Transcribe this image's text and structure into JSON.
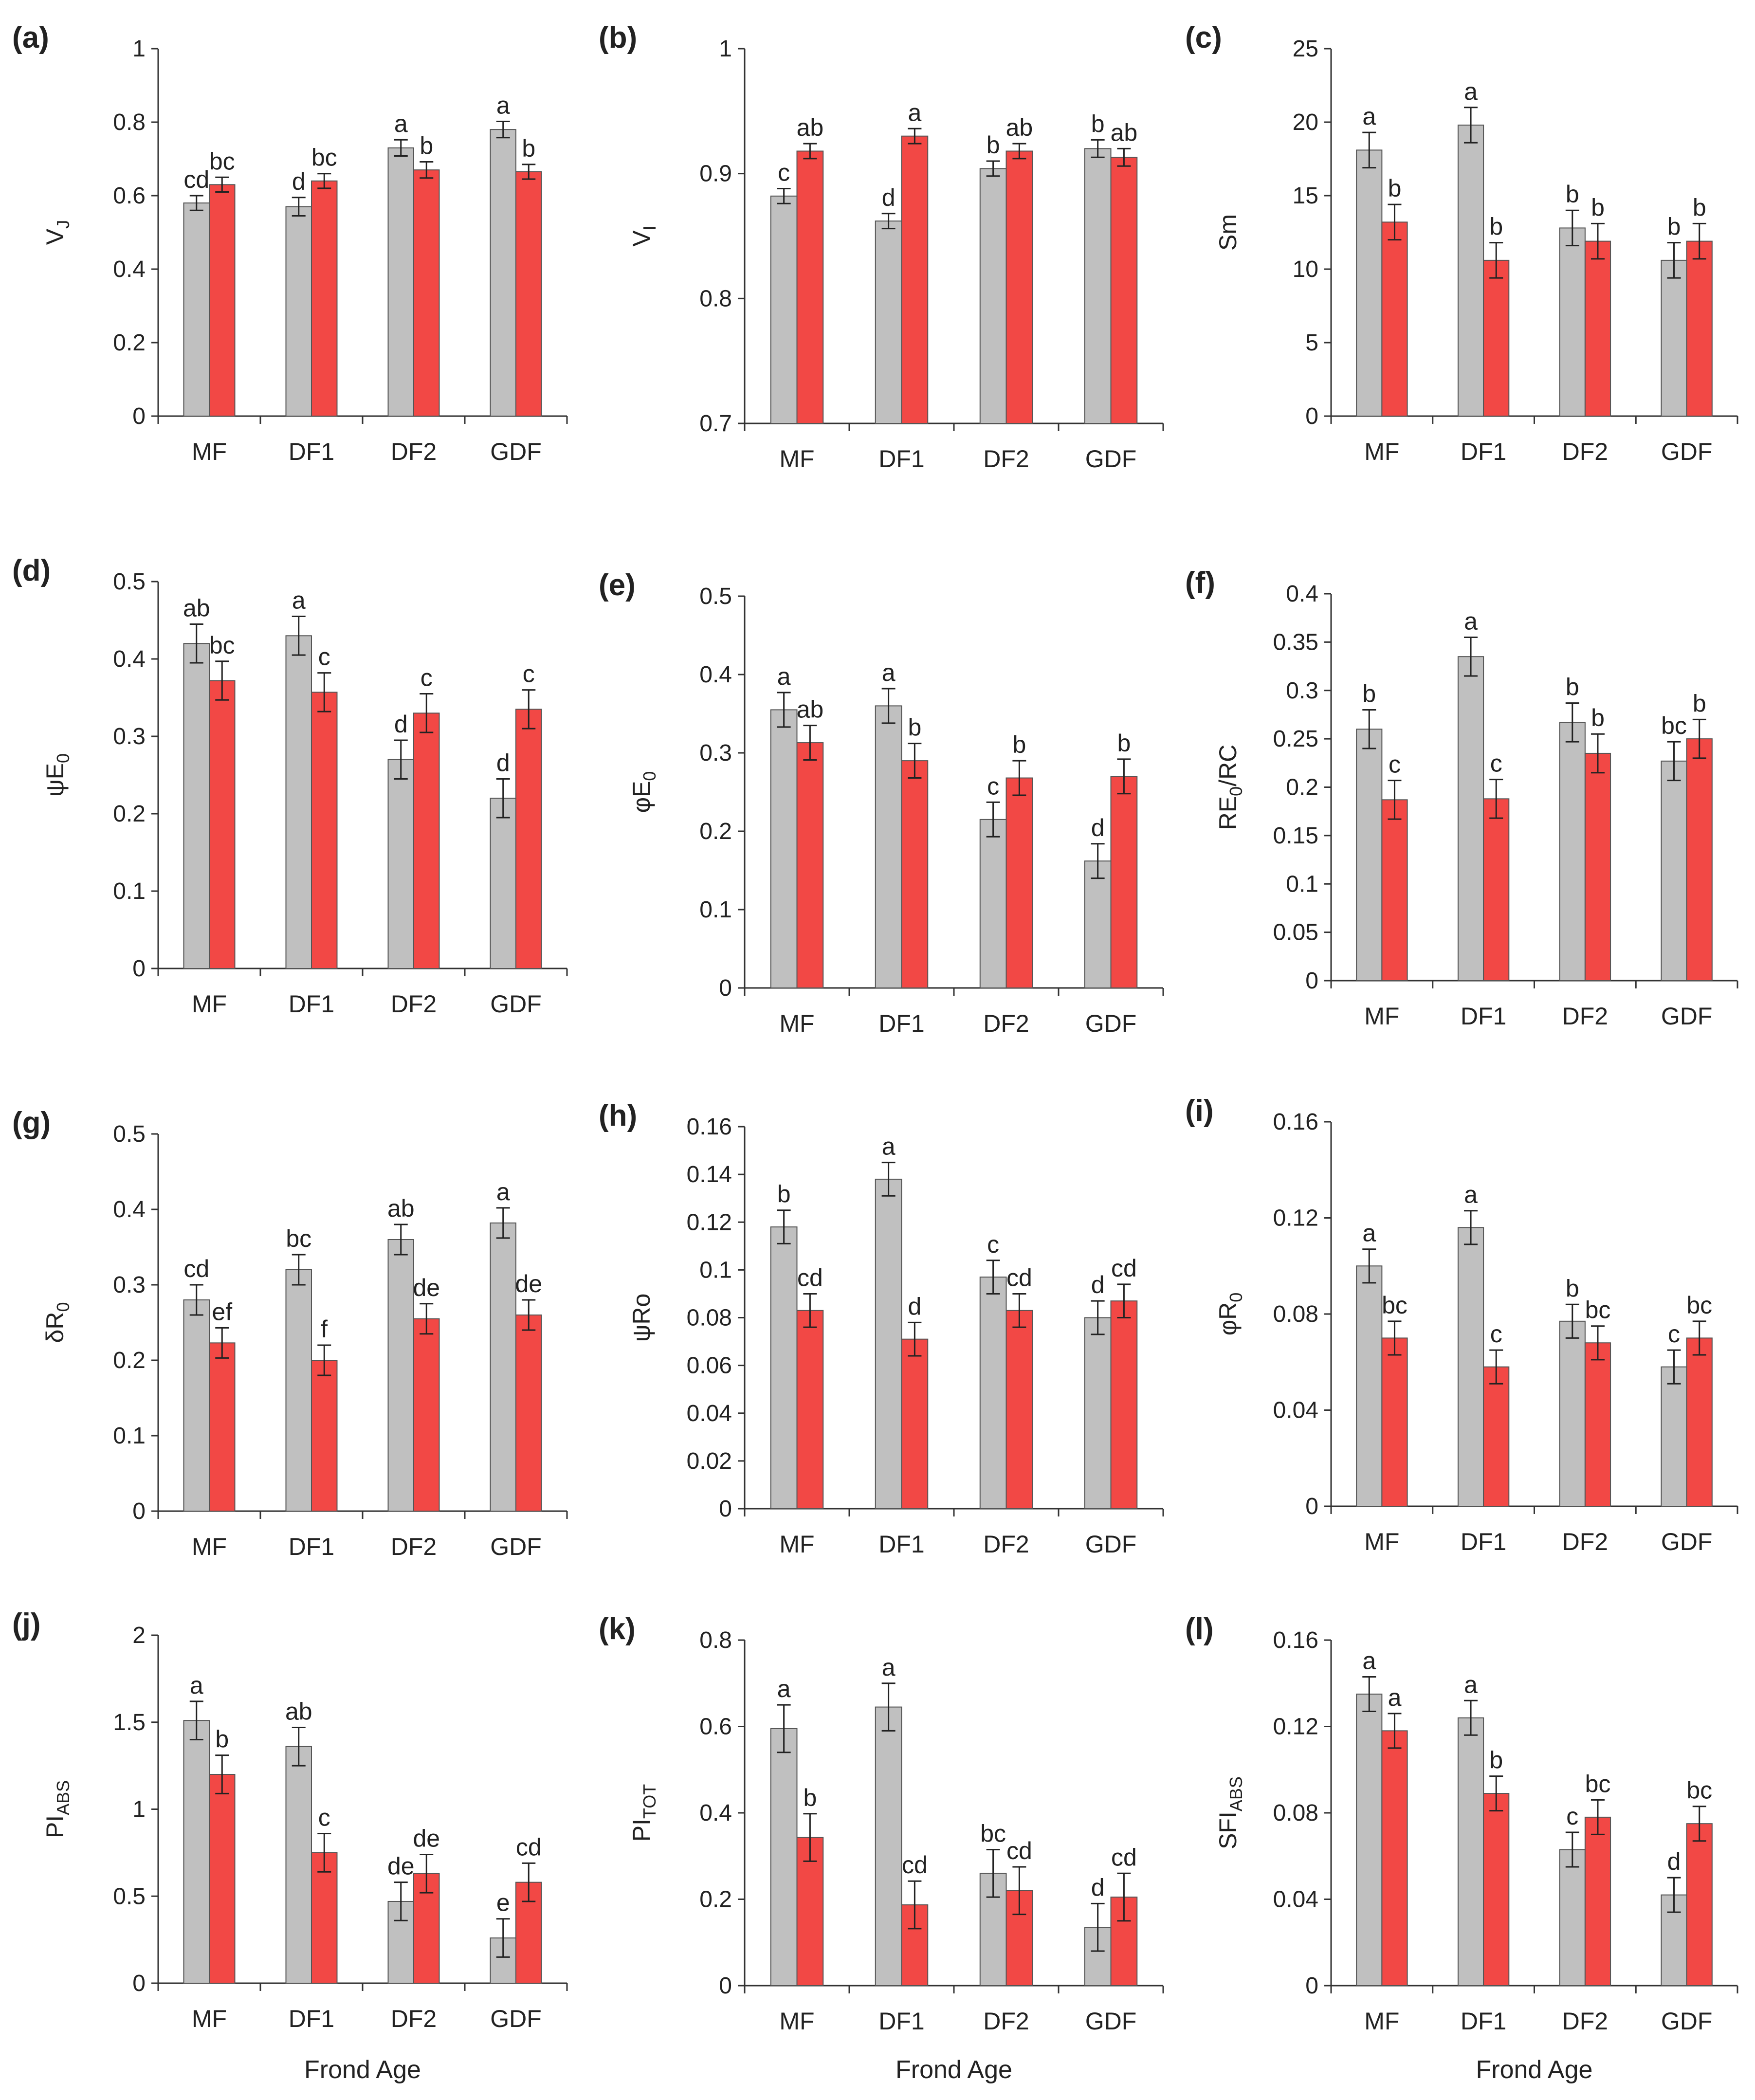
{
  "figure": {
    "x_axis_title": "Frond Age",
    "series_colors": {
      "grey": "#c0c0c0",
      "red": "#f24845"
    }
  },
  "chart_data": [
    {
      "type": "bar",
      "panel": "(a)",
      "ylabel": "V",
      "ylabel_sub": "J",
      "ylim": [
        0,
        1
      ],
      "yticks": [
        "0",
        "0.2",
        "0.4",
        "0.6",
        "0.8",
        "1"
      ],
      "categories": [
        "MF",
        "DF1",
        "DF2",
        "GDF"
      ],
      "series": [
        {
          "name": "grey",
          "values": [
            0.58,
            0.57,
            0.73,
            0.78
          ],
          "errors": [
            0.02,
            0.025,
            0.022,
            0.022
          ],
          "letters": [
            "cd",
            "d",
            "a",
            "a"
          ]
        },
        {
          "name": "red",
          "values": [
            0.63,
            0.64,
            0.67,
            0.665
          ],
          "errors": [
            0.02,
            0.02,
            0.022,
            0.02
          ],
          "letters": [
            "bc",
            "bc",
            "b",
            "b"
          ]
        }
      ]
    },
    {
      "type": "bar",
      "panel": "(b)",
      "ylabel": "V",
      "ylabel_sub": "I",
      "ylim": [
        0.7,
        1
      ],
      "yticks": [
        "0.7",
        "0.8",
        "0.9",
        "1"
      ],
      "categories": [
        "MF",
        "DF1",
        "DF2",
        "GDF"
      ],
      "series": [
        {
          "name": "grey",
          "values": [
            0.882,
            0.862,
            0.904,
            0.92
          ],
          "errors": [
            0.006,
            0.006,
            0.006,
            0.007
          ],
          "letters": [
            "c",
            "d",
            "b",
            "b"
          ]
        },
        {
          "name": "red",
          "values": [
            0.918,
            0.93,
            0.918,
            0.913
          ],
          "errors": [
            0.006,
            0.006,
            0.006,
            0.007
          ],
          "letters": [
            "ab",
            "a",
            "ab",
            "ab"
          ]
        }
      ]
    },
    {
      "type": "bar",
      "panel": "(c)",
      "ylabel": "Sm",
      "ylabel_sub": "",
      "ylim": [
        0,
        25
      ],
      "yticks": [
        "0",
        "5",
        "10",
        "15",
        "20",
        "25"
      ],
      "categories": [
        "MF",
        "DF1",
        "DF2",
        "GDF"
      ],
      "series": [
        {
          "name": "grey",
          "values": [
            18.1,
            19.8,
            12.8,
            10.6
          ],
          "errors": [
            1.2,
            1.2,
            1.2,
            1.2
          ],
          "letters": [
            "a",
            "a",
            "b",
            "b"
          ]
        },
        {
          "name": "red",
          "values": [
            13.2,
            10.6,
            11.9,
            11.9
          ],
          "errors": [
            1.2,
            1.2,
            1.2,
            1.2
          ],
          "letters": [
            "b",
            "b",
            "b",
            "b"
          ]
        }
      ]
    },
    {
      "type": "bar",
      "panel": "(d)",
      "ylabel": "ψE",
      "ylabel_sub": "0",
      "ylim": [
        0,
        0.5
      ],
      "yticks": [
        "0",
        "0.1",
        "0.2",
        "0.3",
        "0.4",
        "0.5"
      ],
      "categories": [
        "MF",
        "DF1",
        "DF2",
        "GDF"
      ],
      "series": [
        {
          "name": "grey",
          "values": [
            0.42,
            0.43,
            0.27,
            0.22
          ],
          "errors": [
            0.025,
            0.025,
            0.025,
            0.025
          ],
          "letters": [
            "ab",
            "a",
            "d",
            "d"
          ]
        },
        {
          "name": "red",
          "values": [
            0.372,
            0.357,
            0.33,
            0.335
          ],
          "errors": [
            0.025,
            0.025,
            0.025,
            0.025
          ],
          "letters": [
            "bc",
            "c",
            "c",
            "c"
          ]
        }
      ]
    },
    {
      "type": "bar",
      "panel": "(e)",
      "ylabel": "φE",
      "ylabel_sub": "0",
      "ylim": [
        0,
        0.5
      ],
      "yticks": [
        "0",
        "0.1",
        "0.2",
        "0.3",
        "0.4",
        "0.5"
      ],
      "categories": [
        "MF",
        "DF1",
        "DF2",
        "GDF"
      ],
      "series": [
        {
          "name": "grey",
          "values": [
            0.355,
            0.36,
            0.215,
            0.162
          ],
          "errors": [
            0.022,
            0.022,
            0.022,
            0.022
          ],
          "letters": [
            "a",
            "a",
            "c",
            "d"
          ]
        },
        {
          "name": "red",
          "values": [
            0.313,
            0.29,
            0.268,
            0.27
          ],
          "errors": [
            0.022,
            0.022,
            0.022,
            0.022
          ],
          "letters": [
            "ab",
            "b",
            "b",
            "b"
          ]
        }
      ]
    },
    {
      "type": "bar",
      "panel": "(f)",
      "ylabel": "RE",
      "ylabel_sub": "0",
      "ylabel_suffix": "/RC",
      "ylim": [
        0,
        0.4
      ],
      "yticks": [
        "0",
        "0.05",
        "0.1",
        "0.15",
        "0.2",
        "0.25",
        "0.3",
        "0.35",
        "0.4"
      ],
      "categories": [
        "MF",
        "DF1",
        "DF2",
        "GDF"
      ],
      "series": [
        {
          "name": "grey",
          "values": [
            0.26,
            0.335,
            0.267,
            0.227
          ],
          "errors": [
            0.02,
            0.02,
            0.02,
            0.02
          ],
          "letters": [
            "b",
            "a",
            "b",
            "bc"
          ]
        },
        {
          "name": "red",
          "values": [
            0.187,
            0.188,
            0.235,
            0.25
          ],
          "errors": [
            0.02,
            0.02,
            0.02,
            0.02
          ],
          "letters": [
            "c",
            "c",
            "b",
            "b"
          ]
        }
      ]
    },
    {
      "type": "bar",
      "panel": "(g)",
      "ylabel": "δR",
      "ylabel_sub": "0",
      "ylim": [
        0,
        0.5
      ],
      "yticks": [
        "0",
        "0.1",
        "0.2",
        "0.3",
        "0.4",
        "0.5"
      ],
      "categories": [
        "MF",
        "DF1",
        "DF2",
        "GDF"
      ],
      "series": [
        {
          "name": "grey",
          "values": [
            0.28,
            0.32,
            0.36,
            0.382
          ],
          "errors": [
            0.02,
            0.02,
            0.02,
            0.02
          ],
          "letters": [
            "cd",
            "bc",
            "ab",
            "a"
          ]
        },
        {
          "name": "red",
          "values": [
            0.223,
            0.2,
            0.255,
            0.26
          ],
          "errors": [
            0.02,
            0.02,
            0.02,
            0.02
          ],
          "letters": [
            "ef",
            "f",
            "de",
            "de"
          ]
        }
      ]
    },
    {
      "type": "bar",
      "panel": "(h)",
      "ylabel": "ψRo",
      "ylabel_sub": "",
      "ylim": [
        0,
        0.16
      ],
      "yticks": [
        "0",
        "0.02",
        "0.04",
        "0.06",
        "0.08",
        "0.1",
        "0.12",
        "0.14",
        "0.16"
      ],
      "categories": [
        "MF",
        "DF1",
        "DF2",
        "GDF"
      ],
      "series": [
        {
          "name": "grey",
          "values": [
            0.118,
            0.138,
            0.097,
            0.08
          ],
          "errors": [
            0.007,
            0.007,
            0.007,
            0.007
          ],
          "letters": [
            "b",
            "a",
            "c",
            "d"
          ]
        },
        {
          "name": "red",
          "values": [
            0.083,
            0.071,
            0.083,
            0.087
          ],
          "errors": [
            0.007,
            0.007,
            0.007,
            0.007
          ],
          "letters": [
            "cd",
            "d",
            "cd",
            "cd"
          ]
        }
      ]
    },
    {
      "type": "bar",
      "panel": "(i)",
      "ylabel": "φR",
      "ylabel_sub": "0",
      "ylim": [
        0,
        0.16
      ],
      "yticks": [
        "0",
        "0.04",
        "0.08",
        "0.12",
        "0.16"
      ],
      "categories": [
        "MF",
        "DF1",
        "DF2",
        "GDF"
      ],
      "series": [
        {
          "name": "grey",
          "values": [
            0.1,
            0.116,
            0.077,
            0.058
          ],
          "errors": [
            0.007,
            0.007,
            0.007,
            0.007
          ],
          "letters": [
            "a",
            "a",
            "b",
            "c"
          ]
        },
        {
          "name": "red",
          "values": [
            0.07,
            0.058,
            0.068,
            0.07
          ],
          "errors": [
            0.007,
            0.007,
            0.007,
            0.007
          ],
          "letters": [
            "bc",
            "c",
            "bc",
            "bc"
          ]
        }
      ]
    },
    {
      "type": "bar",
      "panel": "(j)",
      "ylabel": "PI",
      "ylabel_sub": "ABS",
      "ylim": [
        0,
        2
      ],
      "yticks": [
        "0",
        "0.5",
        "1",
        "1.5",
        "2"
      ],
      "categories": [
        "MF",
        "DF1",
        "DF2",
        "GDF"
      ],
      "series": [
        {
          "name": "grey",
          "values": [
            1.51,
            1.36,
            0.47,
            0.26
          ],
          "errors": [
            0.11,
            0.11,
            0.11,
            0.11
          ],
          "letters": [
            "a",
            "ab",
            "de",
            "e"
          ]
        },
        {
          "name": "red",
          "values": [
            1.2,
            0.75,
            0.63,
            0.58
          ],
          "errors": [
            0.11,
            0.11,
            0.11,
            0.11
          ],
          "letters": [
            "b",
            "c",
            "de",
            "cd"
          ]
        }
      ]
    },
    {
      "type": "bar",
      "panel": "(k)",
      "ylabel": "PI",
      "ylabel_sub": "TOT",
      "ylim": [
        0,
        0.8
      ],
      "yticks": [
        "0",
        "0.2",
        "0.4",
        "0.6",
        "0.8"
      ],
      "categories": [
        "MF",
        "DF1",
        "DF2",
        "GDF"
      ],
      "series": [
        {
          "name": "grey",
          "values": [
            0.595,
            0.645,
            0.26,
            0.135
          ],
          "errors": [
            0.055,
            0.055,
            0.055,
            0.055
          ],
          "letters": [
            "a",
            "a",
            "bc",
            "d"
          ]
        },
        {
          "name": "red",
          "values": [
            0.343,
            0.187,
            0.22,
            0.205
          ],
          "errors": [
            0.055,
            0.055,
            0.055,
            0.055
          ],
          "letters": [
            "b",
            "cd",
            "cd",
            "cd"
          ]
        }
      ]
    },
    {
      "type": "bar",
      "panel": "(l)",
      "ylabel": "SFI",
      "ylabel_sub": "ABS",
      "ylim": [
        0,
        0.16
      ],
      "yticks": [
        "0",
        "0.04",
        "0.08",
        "0.12",
        "0.16"
      ],
      "categories": [
        "MF",
        "DF1",
        "DF2",
        "GDF"
      ],
      "series": [
        {
          "name": "grey",
          "values": [
            0.135,
            0.124,
            0.063,
            0.042
          ],
          "errors": [
            0.008,
            0.008,
            0.008,
            0.008
          ],
          "letters": [
            "a",
            "a",
            "c",
            "d"
          ]
        },
        {
          "name": "red",
          "values": [
            0.118,
            0.089,
            0.078,
            0.075
          ],
          "errors": [
            0.008,
            0.008,
            0.008,
            0.008
          ],
          "letters": [
            "a",
            "b",
            "bc",
            "bc"
          ]
        }
      ]
    }
  ]
}
